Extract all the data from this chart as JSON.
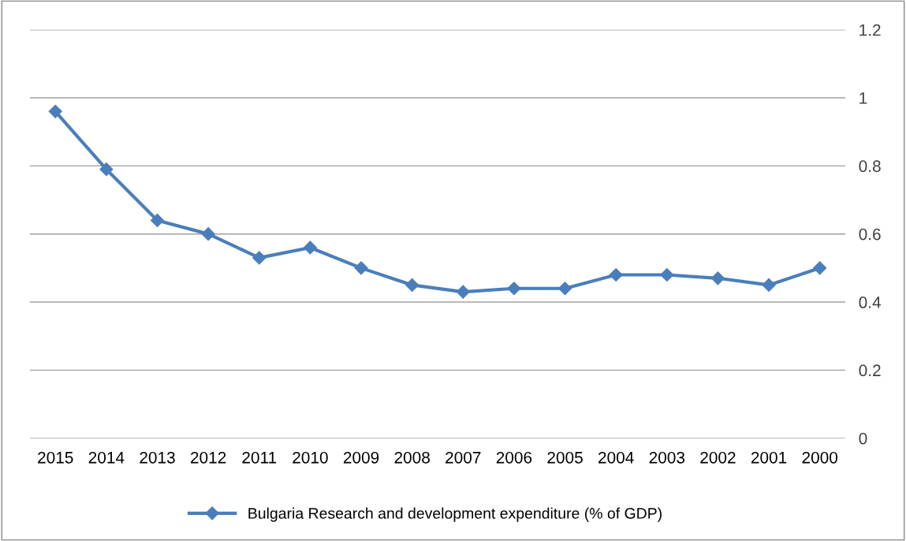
{
  "chart_data": {
    "type": "line",
    "categories": [
      "2015",
      "2014",
      "2013",
      "2012",
      "2011",
      "2010",
      "2009",
      "2008",
      "2007",
      "2006",
      "2005",
      "2004",
      "2003",
      "2002",
      "2001",
      "2000"
    ],
    "series": [
      {
        "name": "Bulgaria Research and development expenditure (% of GDP)",
        "color": "#4a7ebb",
        "values": [
          0.96,
          0.79,
          0.64,
          0.6,
          0.53,
          0.56,
          0.5,
          0.45,
          0.43,
          0.44,
          0.44,
          0.48,
          0.48,
          0.47,
          0.45,
          0.5
        ]
      }
    ],
    "ylim": [
      0,
      1.2
    ],
    "yticks": [
      0,
      0.2,
      0.4,
      0.6,
      0.8,
      1,
      1.2
    ],
    "grid": "y",
    "legend": "bottom",
    "marker": "diamond",
    "line_style": "solid"
  }
}
